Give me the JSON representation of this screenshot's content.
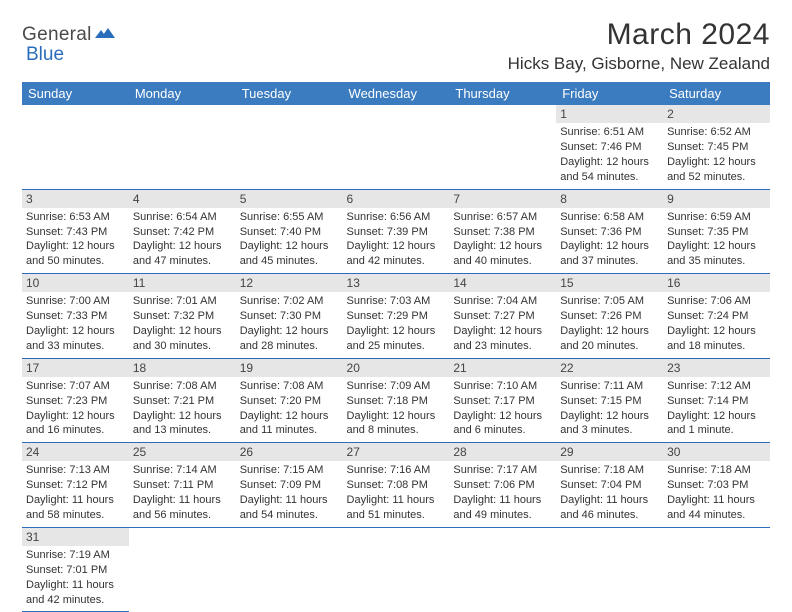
{
  "logo": {
    "general": "General",
    "blue": "Blue"
  },
  "header": {
    "title": "March 2024",
    "location": "Hicks Bay, Gisborne, New Zealand"
  },
  "colors": {
    "header_bg": "#3b7bbf",
    "header_text": "#ffffff",
    "daynum_bg": "#e6e6e6",
    "border": "#2a6ebb",
    "text": "#333333"
  },
  "dayNames": [
    "Sunday",
    "Monday",
    "Tuesday",
    "Wednesday",
    "Thursday",
    "Friday",
    "Saturday"
  ],
  "calendar": {
    "firstWeekday": 5,
    "daysInMonth": 31
  },
  "days": {
    "1": {
      "sunrise": "Sunrise: 6:51 AM",
      "sunset": "Sunset: 7:46 PM",
      "daylight": "Daylight: 12 hours and 54 minutes."
    },
    "2": {
      "sunrise": "Sunrise: 6:52 AM",
      "sunset": "Sunset: 7:45 PM",
      "daylight": "Daylight: 12 hours and 52 minutes."
    },
    "3": {
      "sunrise": "Sunrise: 6:53 AM",
      "sunset": "Sunset: 7:43 PM",
      "daylight": "Daylight: 12 hours and 50 minutes."
    },
    "4": {
      "sunrise": "Sunrise: 6:54 AM",
      "sunset": "Sunset: 7:42 PM",
      "daylight": "Daylight: 12 hours and 47 minutes."
    },
    "5": {
      "sunrise": "Sunrise: 6:55 AM",
      "sunset": "Sunset: 7:40 PM",
      "daylight": "Daylight: 12 hours and 45 minutes."
    },
    "6": {
      "sunrise": "Sunrise: 6:56 AM",
      "sunset": "Sunset: 7:39 PM",
      "daylight": "Daylight: 12 hours and 42 minutes."
    },
    "7": {
      "sunrise": "Sunrise: 6:57 AM",
      "sunset": "Sunset: 7:38 PM",
      "daylight": "Daylight: 12 hours and 40 minutes."
    },
    "8": {
      "sunrise": "Sunrise: 6:58 AM",
      "sunset": "Sunset: 7:36 PM",
      "daylight": "Daylight: 12 hours and 37 minutes."
    },
    "9": {
      "sunrise": "Sunrise: 6:59 AM",
      "sunset": "Sunset: 7:35 PM",
      "daylight": "Daylight: 12 hours and 35 minutes."
    },
    "10": {
      "sunrise": "Sunrise: 7:00 AM",
      "sunset": "Sunset: 7:33 PM",
      "daylight": "Daylight: 12 hours and 33 minutes."
    },
    "11": {
      "sunrise": "Sunrise: 7:01 AM",
      "sunset": "Sunset: 7:32 PM",
      "daylight": "Daylight: 12 hours and 30 minutes."
    },
    "12": {
      "sunrise": "Sunrise: 7:02 AM",
      "sunset": "Sunset: 7:30 PM",
      "daylight": "Daylight: 12 hours and 28 minutes."
    },
    "13": {
      "sunrise": "Sunrise: 7:03 AM",
      "sunset": "Sunset: 7:29 PM",
      "daylight": "Daylight: 12 hours and 25 minutes."
    },
    "14": {
      "sunrise": "Sunrise: 7:04 AM",
      "sunset": "Sunset: 7:27 PM",
      "daylight": "Daylight: 12 hours and 23 minutes."
    },
    "15": {
      "sunrise": "Sunrise: 7:05 AM",
      "sunset": "Sunset: 7:26 PM",
      "daylight": "Daylight: 12 hours and 20 minutes."
    },
    "16": {
      "sunrise": "Sunrise: 7:06 AM",
      "sunset": "Sunset: 7:24 PM",
      "daylight": "Daylight: 12 hours and 18 minutes."
    },
    "17": {
      "sunrise": "Sunrise: 7:07 AM",
      "sunset": "Sunset: 7:23 PM",
      "daylight": "Daylight: 12 hours and 16 minutes."
    },
    "18": {
      "sunrise": "Sunrise: 7:08 AM",
      "sunset": "Sunset: 7:21 PM",
      "daylight": "Daylight: 12 hours and 13 minutes."
    },
    "19": {
      "sunrise": "Sunrise: 7:08 AM",
      "sunset": "Sunset: 7:20 PM",
      "daylight": "Daylight: 12 hours and 11 minutes."
    },
    "20": {
      "sunrise": "Sunrise: 7:09 AM",
      "sunset": "Sunset: 7:18 PM",
      "daylight": "Daylight: 12 hours and 8 minutes."
    },
    "21": {
      "sunrise": "Sunrise: 7:10 AM",
      "sunset": "Sunset: 7:17 PM",
      "daylight": "Daylight: 12 hours and 6 minutes."
    },
    "22": {
      "sunrise": "Sunrise: 7:11 AM",
      "sunset": "Sunset: 7:15 PM",
      "daylight": "Daylight: 12 hours and 3 minutes."
    },
    "23": {
      "sunrise": "Sunrise: 7:12 AM",
      "sunset": "Sunset: 7:14 PM",
      "daylight": "Daylight: 12 hours and 1 minute."
    },
    "24": {
      "sunrise": "Sunrise: 7:13 AM",
      "sunset": "Sunset: 7:12 PM",
      "daylight": "Daylight: 11 hours and 58 minutes."
    },
    "25": {
      "sunrise": "Sunrise: 7:14 AM",
      "sunset": "Sunset: 7:11 PM",
      "daylight": "Daylight: 11 hours and 56 minutes."
    },
    "26": {
      "sunrise": "Sunrise: 7:15 AM",
      "sunset": "Sunset: 7:09 PM",
      "daylight": "Daylight: 11 hours and 54 minutes."
    },
    "27": {
      "sunrise": "Sunrise: 7:16 AM",
      "sunset": "Sunset: 7:08 PM",
      "daylight": "Daylight: 11 hours and 51 minutes."
    },
    "28": {
      "sunrise": "Sunrise: 7:17 AM",
      "sunset": "Sunset: 7:06 PM",
      "daylight": "Daylight: 11 hours and 49 minutes."
    },
    "29": {
      "sunrise": "Sunrise: 7:18 AM",
      "sunset": "Sunset: 7:04 PM",
      "daylight": "Daylight: 11 hours and 46 minutes."
    },
    "30": {
      "sunrise": "Sunrise: 7:18 AM",
      "sunset": "Sunset: 7:03 PM",
      "daylight": "Daylight: 11 hours and 44 minutes."
    },
    "31": {
      "sunrise": "Sunrise: 7:19 AM",
      "sunset": "Sunset: 7:01 PM",
      "daylight": "Daylight: 11 hours and 42 minutes."
    }
  }
}
